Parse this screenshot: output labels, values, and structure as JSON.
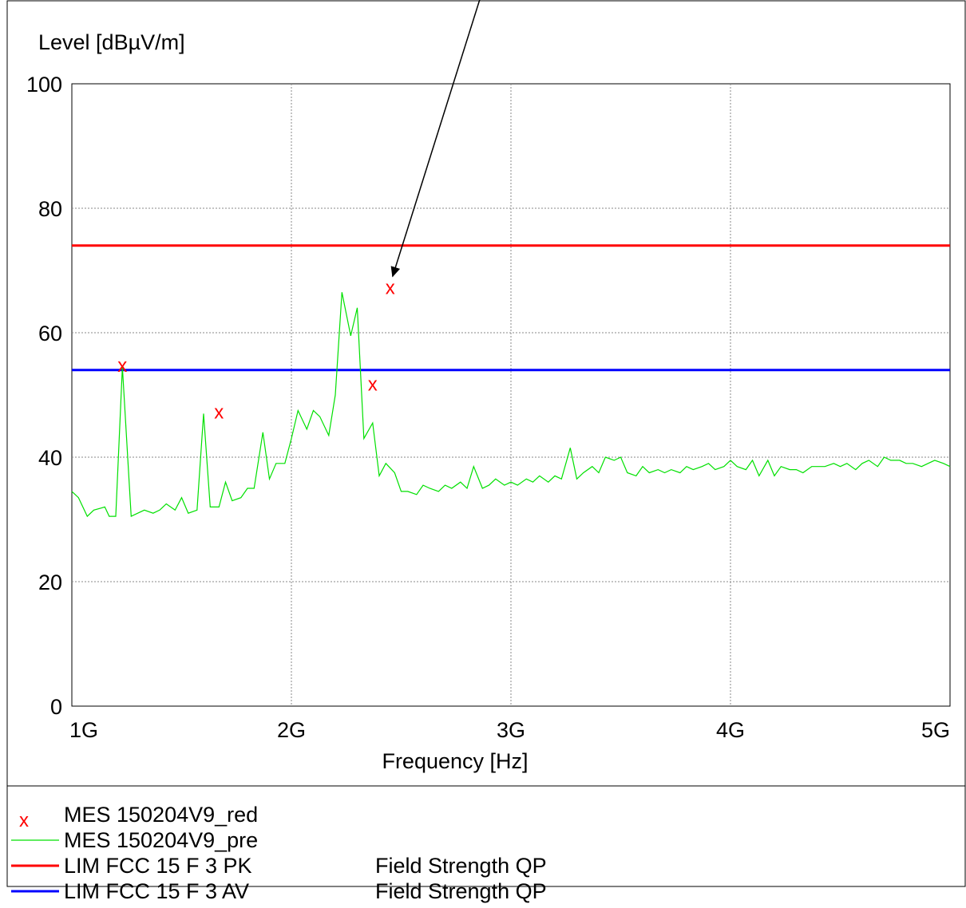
{
  "chart_data": {
    "type": "line",
    "ylabel": "Level [dBµV/m]",
    "xlabel": "Frequency [Hz]",
    "ylim": [
      0,
      100
    ],
    "xlim": [
      1000000000,
      5000000000
    ],
    "y_ticks": [
      0,
      20,
      40,
      60,
      80,
      100
    ],
    "x_ticks": [
      {
        "value": 1000000000,
        "label": "1G"
      },
      {
        "value": 2000000000,
        "label": "2G"
      },
      {
        "value": 3000000000,
        "label": "3G"
      },
      {
        "value": 4000000000,
        "label": "4G"
      },
      {
        "value": 5000000000,
        "label": "5G"
      }
    ],
    "grid": true,
    "series": [
      {
        "name": "MES 150204V9_pre",
        "kind": "line",
        "color": "#00e000",
        "x": [
          1000000000,
          1030000000,
          1070000000,
          1100000000,
          1150000000,
          1170000000,
          1200000000,
          1230000000,
          1270000000,
          1300000000,
          1330000000,
          1370000000,
          1400000000,
          1430000000,
          1470000000,
          1500000000,
          1530000000,
          1570000000,
          1600000000,
          1630000000,
          1670000000,
          1700000000,
          1730000000,
          1770000000,
          1800000000,
          1830000000,
          1870000000,
          1900000000,
          1930000000,
          1970000000,
          2000000000,
          2030000000,
          2070000000,
          2100000000,
          2130000000,
          2170000000,
          2200000000,
          2230000000,
          2270000000,
          2300000000,
          2330000000,
          2370000000,
          2400000000,
          2430000000,
          2470000000,
          2500000000,
          2530000000,
          2570000000,
          2600000000,
          2630000000,
          2670000000,
          2700000000,
          2730000000,
          2770000000,
          2800000000,
          2830000000,
          2870000000,
          2900000000,
          2930000000,
          2970000000,
          3000000000,
          3030000000,
          3070000000,
          3100000000,
          3130000000,
          3170000000,
          3200000000,
          3230000000,
          3270000000,
          3300000000,
          3330000000,
          3370000000,
          3400000000,
          3430000000,
          3470000000,
          3500000000,
          3530000000,
          3570000000,
          3600000000,
          3630000000,
          3670000000,
          3700000000,
          3730000000,
          3770000000,
          3800000000,
          3830000000,
          3870000000,
          3900000000,
          3930000000,
          3970000000,
          4000000000,
          4030000000,
          4070000000,
          4100000000,
          4130000000,
          4170000000,
          4200000000,
          4230000000,
          4270000000,
          4300000000,
          4330000000,
          4370000000,
          4400000000,
          4430000000,
          4470000000,
          4500000000,
          4530000000,
          4570000000,
          4600000000,
          4630000000,
          4670000000,
          4700000000,
          4730000000,
          4770000000,
          4800000000,
          4830000000,
          4870000000,
          4900000000,
          4930000000,
          4970000000,
          5000000000
        ],
        "y": [
          34.5,
          33.5,
          30.5,
          31.5,
          32,
          30.5,
          30.5,
          54.5,
          30.5,
          31,
          31.5,
          31,
          31.5,
          32.5,
          31.5,
          33.5,
          31,
          31.5,
          47,
          32,
          32,
          36,
          33,
          33.5,
          35,
          35,
          44,
          36.5,
          39,
          39,
          43,
          47.5,
          44.5,
          47.5,
          46.5,
          43.5,
          50,
          66.5,
          59.5,
          64,
          43,
          45.5,
          37,
          39,
          37.5,
          34.5,
          34.5,
          34,
          35.5,
          35,
          34.5,
          35.5,
          35,
          36,
          35,
          38.5,
          35,
          35.5,
          36.5,
          35.5,
          36,
          35.5,
          36.5,
          36,
          37,
          36,
          37,
          36.5,
          41.5,
          36.5,
          37.5,
          38.5,
          37.5,
          40,
          39.5,
          40,
          37.5,
          37,
          38.5,
          37.5,
          38,
          37.5,
          38,
          37.5,
          38.5,
          38,
          38.5,
          39,
          38,
          38.5,
          39.5,
          38.5,
          38,
          39.5,
          37,
          39.5,
          37,
          38.5,
          38,
          38,
          37.5,
          38.5,
          38.5,
          38.5,
          39,
          38.5,
          39,
          38,
          39,
          39.5,
          38.5,
          40,
          39.5,
          39.5,
          39,
          39,
          38.5,
          39,
          39.5,
          39,
          38.5
        ]
      },
      {
        "name": "MES 150204V9_red",
        "kind": "markers",
        "marker": "x",
        "color": "#ff0000",
        "x": [
          1230000000,
          1670000000,
          2370000000,
          2450000000
        ],
        "y": [
          55,
          47.5,
          52,
          67.5
        ]
      },
      {
        "name": "LIM FCC 15 F 3 PK",
        "kind": "limit",
        "color": "#ff0000",
        "x": [
          1000000000,
          5000000000
        ],
        "y": [
          74,
          74
        ]
      },
      {
        "name": "LIM FCC 15 F 3 AV",
        "kind": "limit",
        "color": "#0000ff",
        "x": [
          1000000000,
          5000000000
        ],
        "y": [
          54,
          54
        ]
      }
    ],
    "annotation": {
      "type": "arrow",
      "target": {
        "x": 2450000000,
        "y": 67.5
      }
    },
    "legend": {
      "placement": "bottom",
      "entries": [
        {
          "symbol": "x",
          "color": "#ff0000",
          "label": "MES  150204V9_red",
          "note": ""
        },
        {
          "symbol": "line",
          "color": "#00e000",
          "label": "MES  150204V9_pre",
          "note": ""
        },
        {
          "symbol": "line",
          "color": "#ff0000",
          "label": "LIM  FCC 15 F 3 PK",
          "note": "Field Strength QP"
        },
        {
          "symbol": "line",
          "color": "#0000ff",
          "label": "LIM  FCC 15 F 3 AV",
          "note": "Field Strength QP"
        }
      ]
    }
  }
}
